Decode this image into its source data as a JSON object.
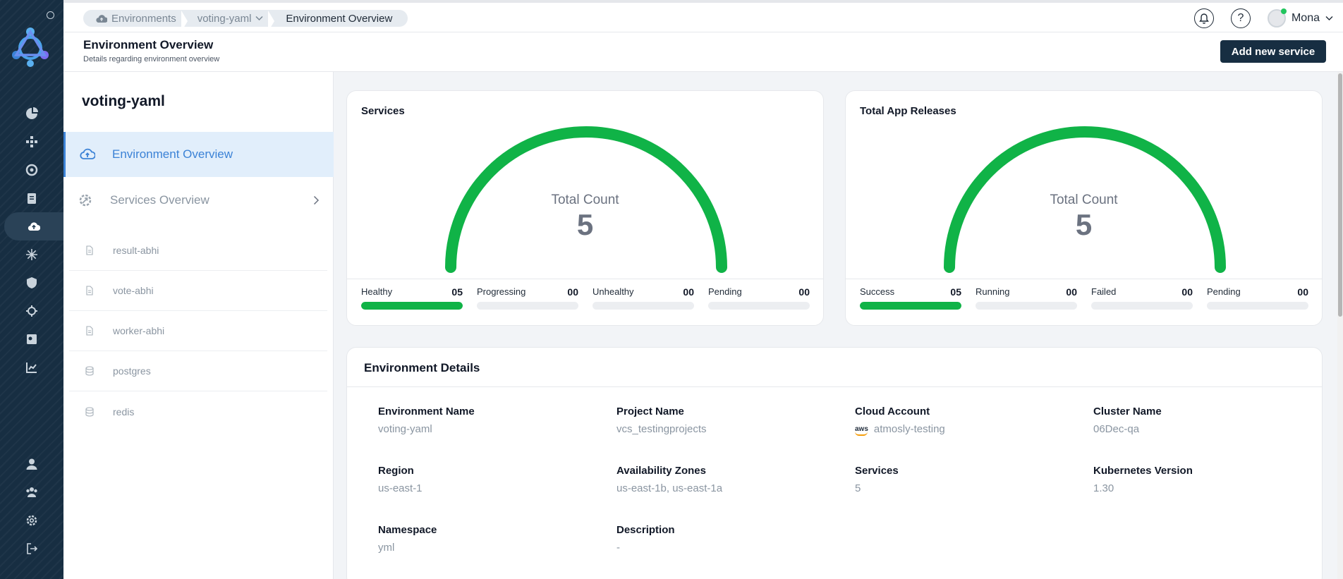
{
  "breadcrumb": [
    "Environments",
    "voting-yaml",
    "Environment Overview"
  ],
  "user": {
    "name": "Mona"
  },
  "header": {
    "title": "Environment Overview",
    "subtitle": "Details regarding environment overview",
    "add_button": "Add new service"
  },
  "sidebar": {
    "env_name": "voting-yaml",
    "nav": [
      {
        "label": "Environment Overview",
        "icon": "cloud-upload-icon"
      },
      {
        "label": "Services Overview",
        "icon": "services-gear-icon"
      }
    ],
    "services": [
      {
        "name": "result-abhi",
        "icon": "file-icon"
      },
      {
        "name": "vote-abhi",
        "icon": "file-icon"
      },
      {
        "name": "worker-abhi",
        "icon": "file-icon"
      },
      {
        "name": "postgres",
        "icon": "database-icon"
      },
      {
        "name": "redis",
        "icon": "database-icon"
      }
    ]
  },
  "cards": [
    {
      "title": "Services",
      "gauge_label": "Total Count",
      "total": "5",
      "stats": [
        {
          "label": "Healthy",
          "value": "05",
          "fraction": 1
        },
        {
          "label": "Progressing",
          "value": "00",
          "fraction": 0
        },
        {
          "label": "Unhealthy",
          "value": "00",
          "fraction": 0
        },
        {
          "label": "Pending",
          "value": "00",
          "fraction": 0
        }
      ]
    },
    {
      "title": "Total App Releases",
      "gauge_label": "Total Count",
      "total": "5",
      "stats": [
        {
          "label": "Success",
          "value": "05",
          "fraction": 1
        },
        {
          "label": "Running",
          "value": "00",
          "fraction": 0
        },
        {
          "label": "Failed",
          "value": "00",
          "fraction": 0
        },
        {
          "label": "Pending",
          "value": "00",
          "fraction": 0
        }
      ]
    }
  ],
  "details": {
    "title": "Environment Details",
    "fields": [
      {
        "key": "Environment Name",
        "value": "voting-yaml"
      },
      {
        "key": "Project Name",
        "value": "vcs_testingprojects"
      },
      {
        "key": "Cloud Account",
        "value": "atmosly-testing",
        "badge": "aws"
      },
      {
        "key": "Cluster Name",
        "value": "06Dec-qa"
      },
      {
        "key": "Region",
        "value": "us-east-1"
      },
      {
        "key": "Availability Zones",
        "value": "us-east-1b, us-east-1a"
      },
      {
        "key": "Services",
        "value": "5"
      },
      {
        "key": "Kubernetes Version",
        "value": "1.30"
      },
      {
        "key": "Namespace",
        "value": "yml"
      },
      {
        "key": "Description",
        "value": "-"
      }
    ]
  },
  "colors": {
    "gauge": "#10b347",
    "nav_active": "#3b82d6",
    "rail": "#172e42"
  }
}
